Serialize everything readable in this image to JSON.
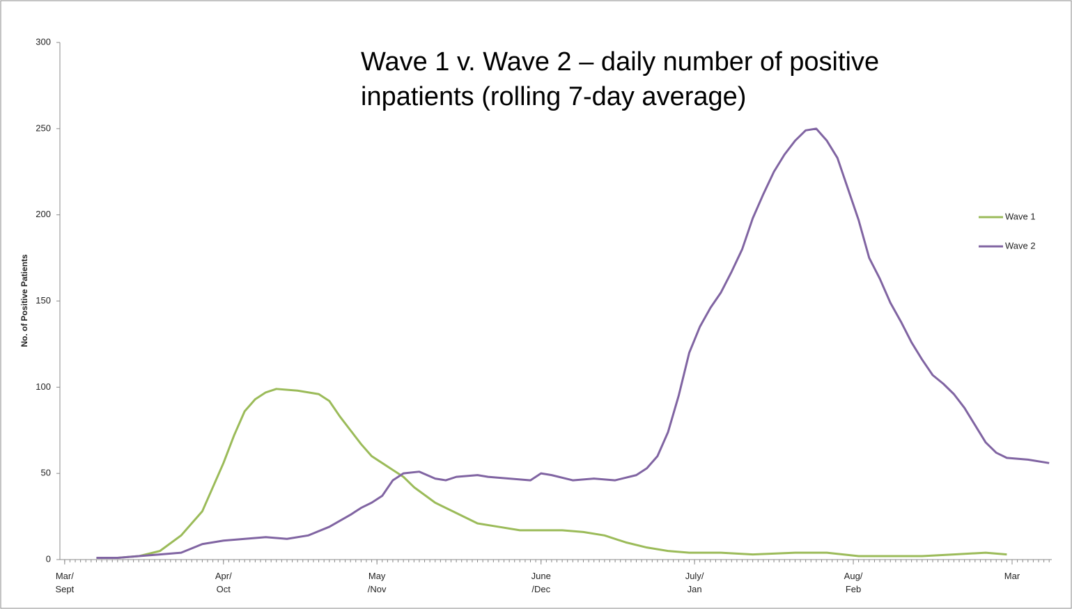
{
  "chart_data": {
    "type": "line",
    "title": "Wave 1 v. Wave 2 – daily number of positive inpatients (rolling 7-day average)",
    "ylabel": "No. of Positive Patients",
    "xlim": [
      -0.9,
      186.5
    ],
    "xticks": [
      {
        "value": 0,
        "label": "Mar/\nSept"
      },
      {
        "value": 30,
        "label": "Apr/\nOct"
      },
      {
        "value": 59,
        "label": "May\n/Nov"
      },
      {
        "value": 90,
        "label": "June\n/Dec"
      },
      {
        "value": 119,
        "label": "July/\nJan"
      },
      {
        "value": 149,
        "label": "Aug/\nFeb"
      },
      {
        "value": 179,
        "label": "Mar"
      }
    ],
    "ylim": [
      0,
      300
    ],
    "yticks": [
      0,
      50,
      100,
      150,
      200,
      250,
      300
    ],
    "legend": "right",
    "series": [
      {
        "name": "Wave 1",
        "color": "#9bbb59",
        "x": [
          6,
          10,
          14,
          18,
          22,
          26,
          27,
          30,
          32,
          34,
          36,
          38,
          40,
          44,
          48,
          50,
          52,
          54,
          56,
          58,
          60,
          62,
          64,
          66,
          70,
          74,
          78,
          82,
          86,
          90,
          94,
          98,
          102,
          106,
          110,
          114,
          118,
          124,
          130,
          138,
          144,
          150,
          156,
          162,
          168,
          174,
          178
        ],
        "values": [
          1,
          1,
          2,
          5,
          14,
          28,
          35,
          56,
          72,
          86,
          93,
          97,
          99,
          98,
          96,
          92,
          83,
          75,
          67,
          60,
          56,
          52,
          48,
          42,
          33,
          27,
          21,
          19,
          17,
          17,
          17,
          16,
          14,
          10,
          7,
          5,
          4,
          4,
          3,
          4,
          4,
          2,
          2,
          2,
          3,
          4,
          3
        ]
      },
      {
        "name": "Wave 2",
        "color": "#8064a2",
        "x": [
          6,
          10,
          14,
          18,
          22,
          26,
          30,
          34,
          38,
          42,
          46,
          50,
          54,
          56,
          58,
          60,
          62,
          64,
          67,
          70,
          72,
          74,
          78,
          80,
          84,
          88,
          90,
          92,
          96,
          100,
          104,
          108,
          110,
          112,
          114,
          116,
          118,
          120,
          122,
          124,
          126,
          128,
          130,
          132,
          134,
          136,
          138,
          140,
          142,
          144,
          146,
          148,
          150,
          152,
          154,
          156,
          158,
          160,
          162,
          164,
          166,
          168,
          170,
          172,
          174,
          176,
          178,
          182,
          186
        ],
        "values": [
          1,
          1,
          2,
          3,
          4,
          9,
          11,
          12,
          13,
          12,
          14,
          19,
          26,
          30,
          33,
          37,
          46,
          50,
          51,
          47,
          46,
          48,
          49,
          48,
          47,
          46,
          50,
          49,
          46,
          47,
          46,
          49,
          53,
          60,
          74,
          95,
          120,
          135,
          146,
          155,
          167,
          180,
          198,
          212,
          225,
          235,
          243,
          249,
          250,
          243,
          233,
          215,
          197,
          175,
          163,
          149,
          138,
          126,
          116,
          107,
          102,
          96,
          88,
          78,
          68,
          62,
          59,
          58,
          56
        ]
      }
    ]
  }
}
